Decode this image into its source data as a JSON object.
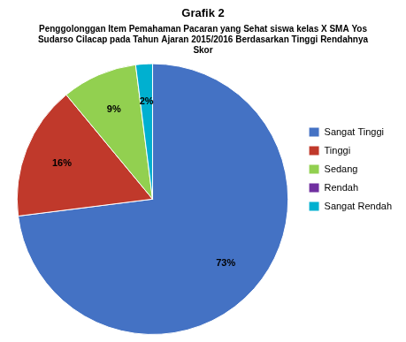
{
  "chart_data": {
    "type": "pie",
    "title": "Grafik 2",
    "subtitle": [
      "Penggolonggan Item Pemahaman Pacaran yang Sehat siswa kelas X SMA Yos",
      "Sudarso Cilacap pada Tahun Ajaran 2015/2016 Berdasarkan Tinggi Rendahnya",
      "Skor"
    ],
    "categories": [
      "Sangat Tinggi",
      "Tinggi",
      "Sedang",
      "Rendah",
      "Sangat Rendah"
    ],
    "values": [
      73,
      16,
      9,
      0,
      2
    ],
    "value_labels": [
      "73%",
      "16%",
      "9%",
      null,
      "2%"
    ],
    "colors": [
      "#4472C4",
      "#C0392B",
      "#92D050",
      "#7030A0",
      "#00B0D0"
    ],
    "data_labels": true,
    "legend": "right"
  }
}
